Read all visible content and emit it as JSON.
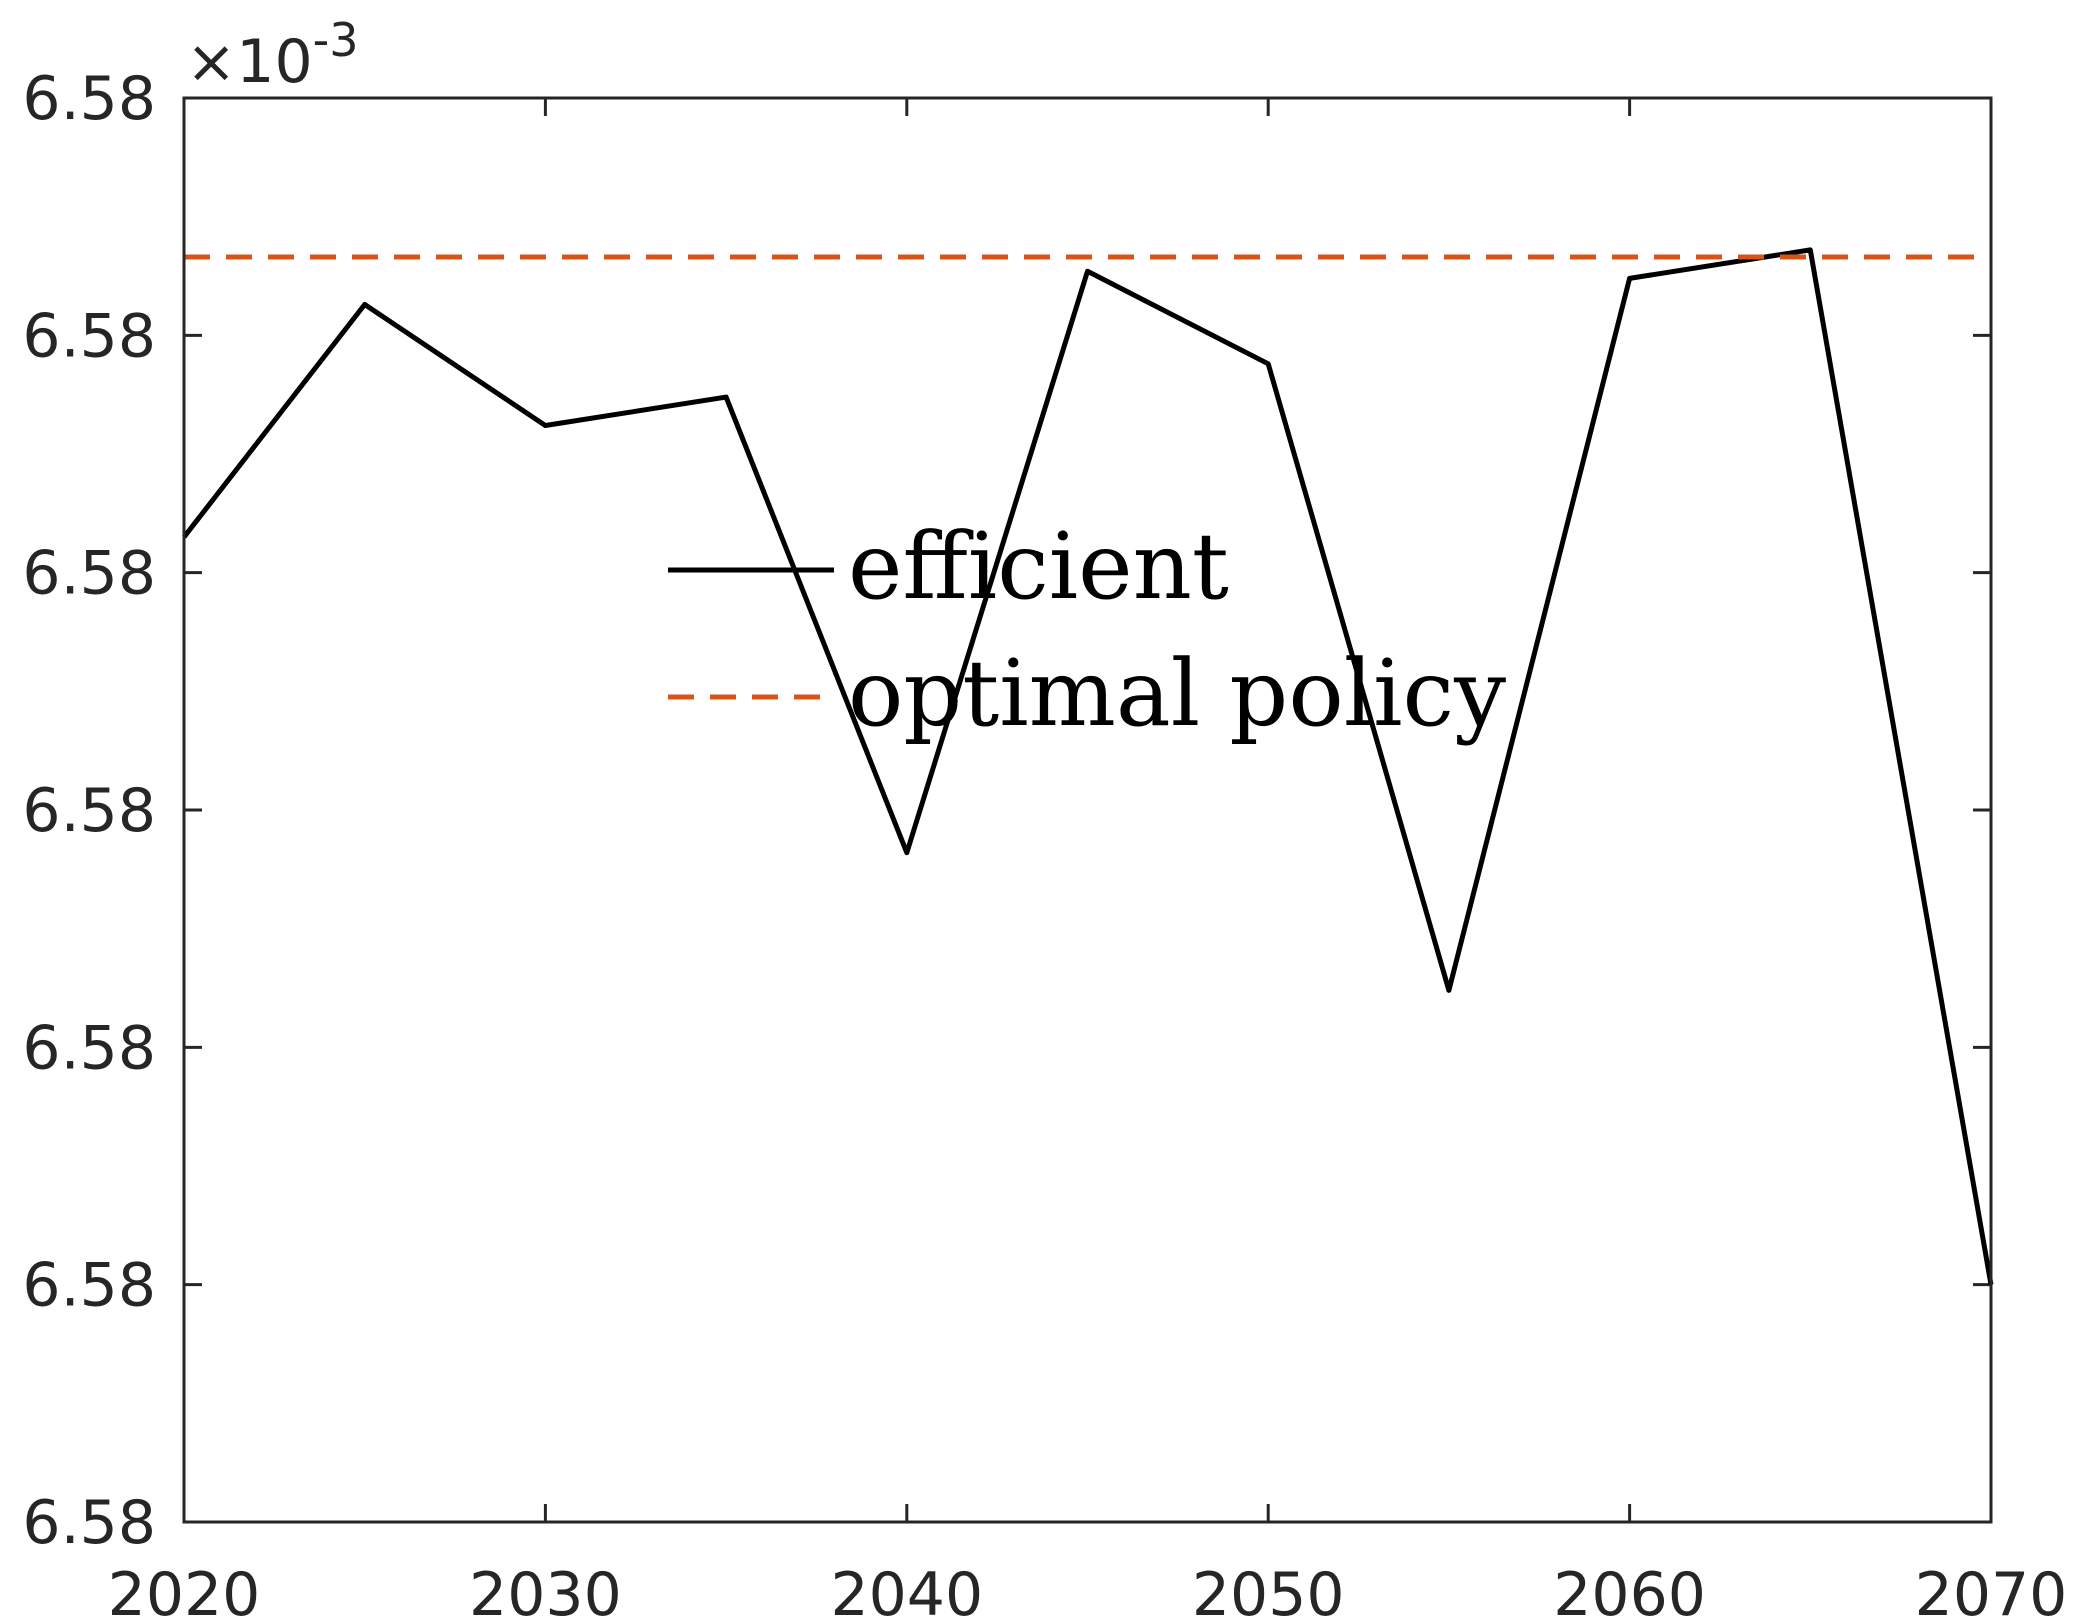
{
  "chart_data": {
    "type": "line",
    "title": "",
    "xlabel": "",
    "ylabel": "",
    "exponent_label": {
      "base": "×10",
      "power": "-3"
    },
    "x": [
      2020,
      2025,
      2030,
      2035,
      2040,
      2045,
      2050,
      2055,
      2060,
      2065,
      2070
    ],
    "xlim": [
      2020,
      2070
    ],
    "xticks": [
      2020,
      2030,
      2040,
      2050,
      2060,
      2070
    ],
    "xtick_labels": [
      "2020",
      "2030",
      "2040",
      "2050",
      "2060",
      "2070"
    ],
    "ylim": [
      0,
      6
    ],
    "yticks": [
      0,
      1,
      2,
      3,
      4,
      5,
      6
    ],
    "ytick_labels": [
      "6.58",
      "6.58",
      "6.58",
      "6.58",
      "6.58",
      "6.58",
      "6.58"
    ],
    "grid": false,
    "legend": {
      "position": "center"
    },
    "series": [
      {
        "name": "efficient",
        "color": "#000000",
        "style": "solid",
        "values": [
          4.15,
          5.13,
          4.62,
          4.74,
          2.82,
          5.27,
          4.88,
          2.24,
          5.24,
          5.36,
          1.0
        ]
      },
      {
        "name": "optimal policy",
        "color": "#D95319",
        "style": "dashed",
        "values": [
          5.33,
          5.33,
          5.33,
          5.33,
          5.33,
          5.33,
          5.33,
          5.33,
          5.33,
          5.33,
          5.33
        ]
      }
    ]
  }
}
